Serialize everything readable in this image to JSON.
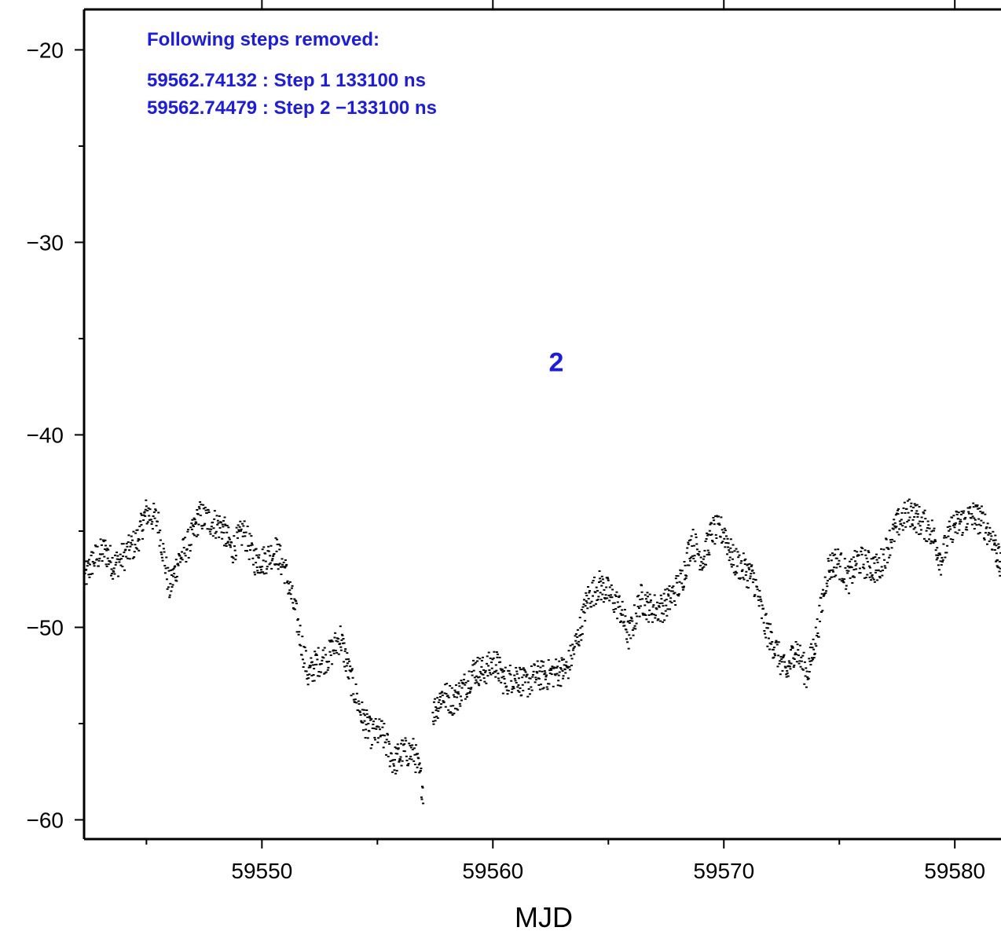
{
  "chart_data": {
    "type": "scatter",
    "title": "",
    "xlabel": "MJD",
    "ylabel": "",
    "xlim": [
      59542.3,
      59582.0
    ],
    "ylim": [
      -61.0,
      -17.9
    ],
    "x_ticks": [
      59550,
      59560,
      59570,
      59580
    ],
    "x_minor_ticks": [
      59545,
      59555,
      59565,
      59575
    ],
    "y_ticks": [
      -20,
      -30,
      -40,
      -50,
      -60
    ],
    "y_minor_ticks": [
      -25,
      -35,
      -45,
      -55
    ],
    "grid": false,
    "series": [
      {
        "color": "#000000",
        "marker": "short-dash",
        "x": [
          59542.3,
          59542.7,
          59543.2,
          59543.6,
          59544.1,
          59544.6,
          59545.0,
          59545.5,
          59546.0,
          59546.4,
          59546.9,
          59547.3,
          59547.8,
          59548.3,
          59548.7,
          59549.2,
          59549.7,
          59550.1,
          59550.6,
          59551.0,
          59551.5,
          59552.0,
          59552.4,
          59552.9,
          59553.4,
          59553.8,
          59554.3,
          59554.7,
          59555.2,
          59555.7,
          59556.1,
          59556.6,
          59557.0,
          59557.4,
          59557.8,
          59558.3,
          59558.7,
          59559.2,
          59559.6,
          59560.1,
          59560.5,
          59561.0,
          59561.4,
          59561.9,
          59562.3,
          59562.8,
          59563.2,
          59563.7,
          59564.1,
          59564.6,
          59565.0,
          59565.5,
          59565.9,
          59566.4,
          59566.8,
          59567.3,
          59567.7,
          59568.2,
          59568.6,
          59569.1,
          59569.5,
          59570.0,
          59570.4,
          59570.9,
          59571.3,
          59571.8,
          59572.2,
          59572.7,
          59573.1,
          59573.6,
          59574.0,
          59574.5,
          59574.9,
          59575.4,
          59575.8,
          59576.3,
          59576.7,
          59577.2,
          59577.6,
          59578.1,
          59578.5,
          59579.0,
          59579.4,
          59579.9,
          59580.3,
          59580.8,
          59581.2,
          59581.7,
          59582.0
        ],
        "y": [
          -47.5,
          -46.5,
          -46.0,
          -46.8,
          -46.2,
          -45.5,
          -44.0,
          -44.5,
          -48.0,
          -46.5,
          -45.5,
          -44.2,
          -44.5,
          -44.8,
          -46.0,
          -45.0,
          -46.5,
          -46.5,
          -46.0,
          -47.0,
          -49.5,
          -52.5,
          -51.8,
          -51.5,
          -50.5,
          -52.5,
          -54.5,
          -55.5,
          -55.5,
          -57.0,
          -56.5,
          -56.5,
          -58.5,
          -54.5,
          -53.5,
          -53.8,
          -53.2,
          -52.2,
          -52.3,
          -51.8,
          -52.8,
          -52.5,
          -53.0,
          -52.5,
          -52.5,
          -52.3,
          -52.2,
          -50.5,
          -48.5,
          -47.8,
          -48.2,
          -49.0,
          -50.5,
          -48.5,
          -49.0,
          -49.0,
          -48.5,
          -47.5,
          -45.5,
          -46.5,
          -45.0,
          -45.0,
          -46.5,
          -47.0,
          -47.5,
          -50.0,
          -51.0,
          -52.5,
          -51.0,
          -52.5,
          -50.5,
          -47.0,
          -46.5,
          -47.5,
          -46.5,
          -46.8,
          -47.0,
          -45.5,
          -44.5,
          -44.0,
          -44.5,
          -45.0,
          -46.5,
          -44.8,
          -44.5,
          -44.2,
          -44.5,
          -45.5,
          -47.0
        ]
      }
    ],
    "markers": [
      {
        "x": 59562.74479,
        "y": -36.2,
        "label": "2"
      }
    ],
    "annotations": {
      "heading": "Following steps removed:",
      "steps": [
        "59562.74132 : Step 1 133100 ns",
        "59562.74479 : Step 2 −133100 ns"
      ]
    }
  }
}
